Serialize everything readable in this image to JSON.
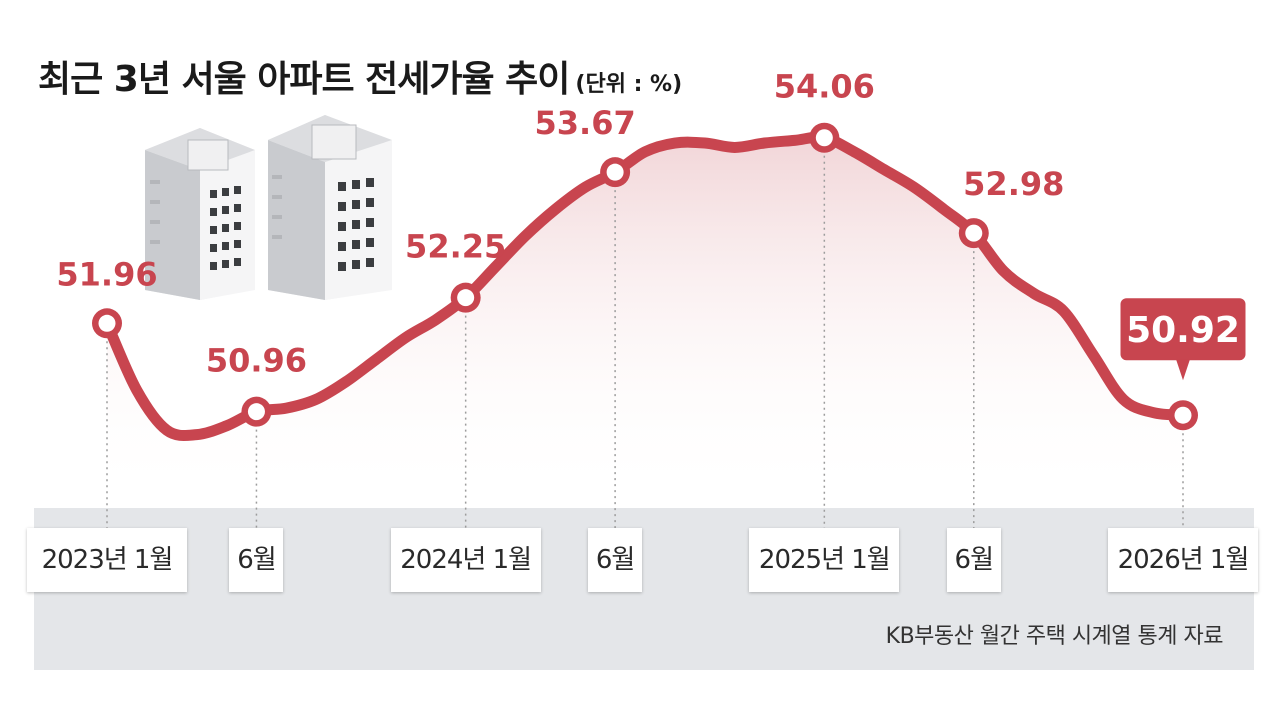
{
  "title": "최근 3년 서울 아파트 전세가율 추이",
  "unit": "(단위 : %)",
  "source": "KB부동산 월간 주택 시계열 통계 자료",
  "colors": {
    "line": "#c8454f",
    "label": "#c8454f",
    "callout": "#c8454f",
    "band": "#e4e6e9"
  },
  "chart_data": {
    "type": "line",
    "title": "최근 3년 서울 아파트 전세가율 추이",
    "unit": "%",
    "x_ticks": [
      "2023년 1월",
      "6월",
      "2024년 1월",
      "6월",
      "2025년 1월",
      "6월",
      "2026년 1월"
    ],
    "labeled_points": [
      {
        "x_index": 0,
        "value": 51.96,
        "label": "51.96"
      },
      {
        "x_index": 5,
        "value": 50.96,
        "label": "50.96"
      },
      {
        "x_index": 12,
        "value": 52.25,
        "label": "52.25"
      },
      {
        "x_index": 17,
        "value": 53.67,
        "label": "53.67"
      },
      {
        "x_index": 24,
        "value": 54.06,
        "label": "54.06"
      },
      {
        "x_index": 29,
        "value": 52.98,
        "label": "52.98"
      },
      {
        "x_index": 36,
        "value": 50.92,
        "label": "50.92",
        "highlight": true
      }
    ],
    "series": [
      {
        "values": [
          51.96,
          51.2,
          50.75,
          50.7,
          50.8,
          50.96,
          51.0,
          51.1,
          51.3,
          51.55,
          51.8,
          52.0,
          52.25,
          52.6,
          52.95,
          53.25,
          53.5,
          53.67,
          53.9,
          54.0,
          54.0,
          53.95,
          54.0,
          54.03,
          54.06,
          53.9,
          53.7,
          53.5,
          53.25,
          52.98,
          52.55,
          52.3,
          52.1,
          51.6,
          51.1,
          50.95,
          50.92
        ]
      }
    ],
    "ylim": [
      50.3,
      54.6
    ],
    "grid": false,
    "legend": "none"
  }
}
